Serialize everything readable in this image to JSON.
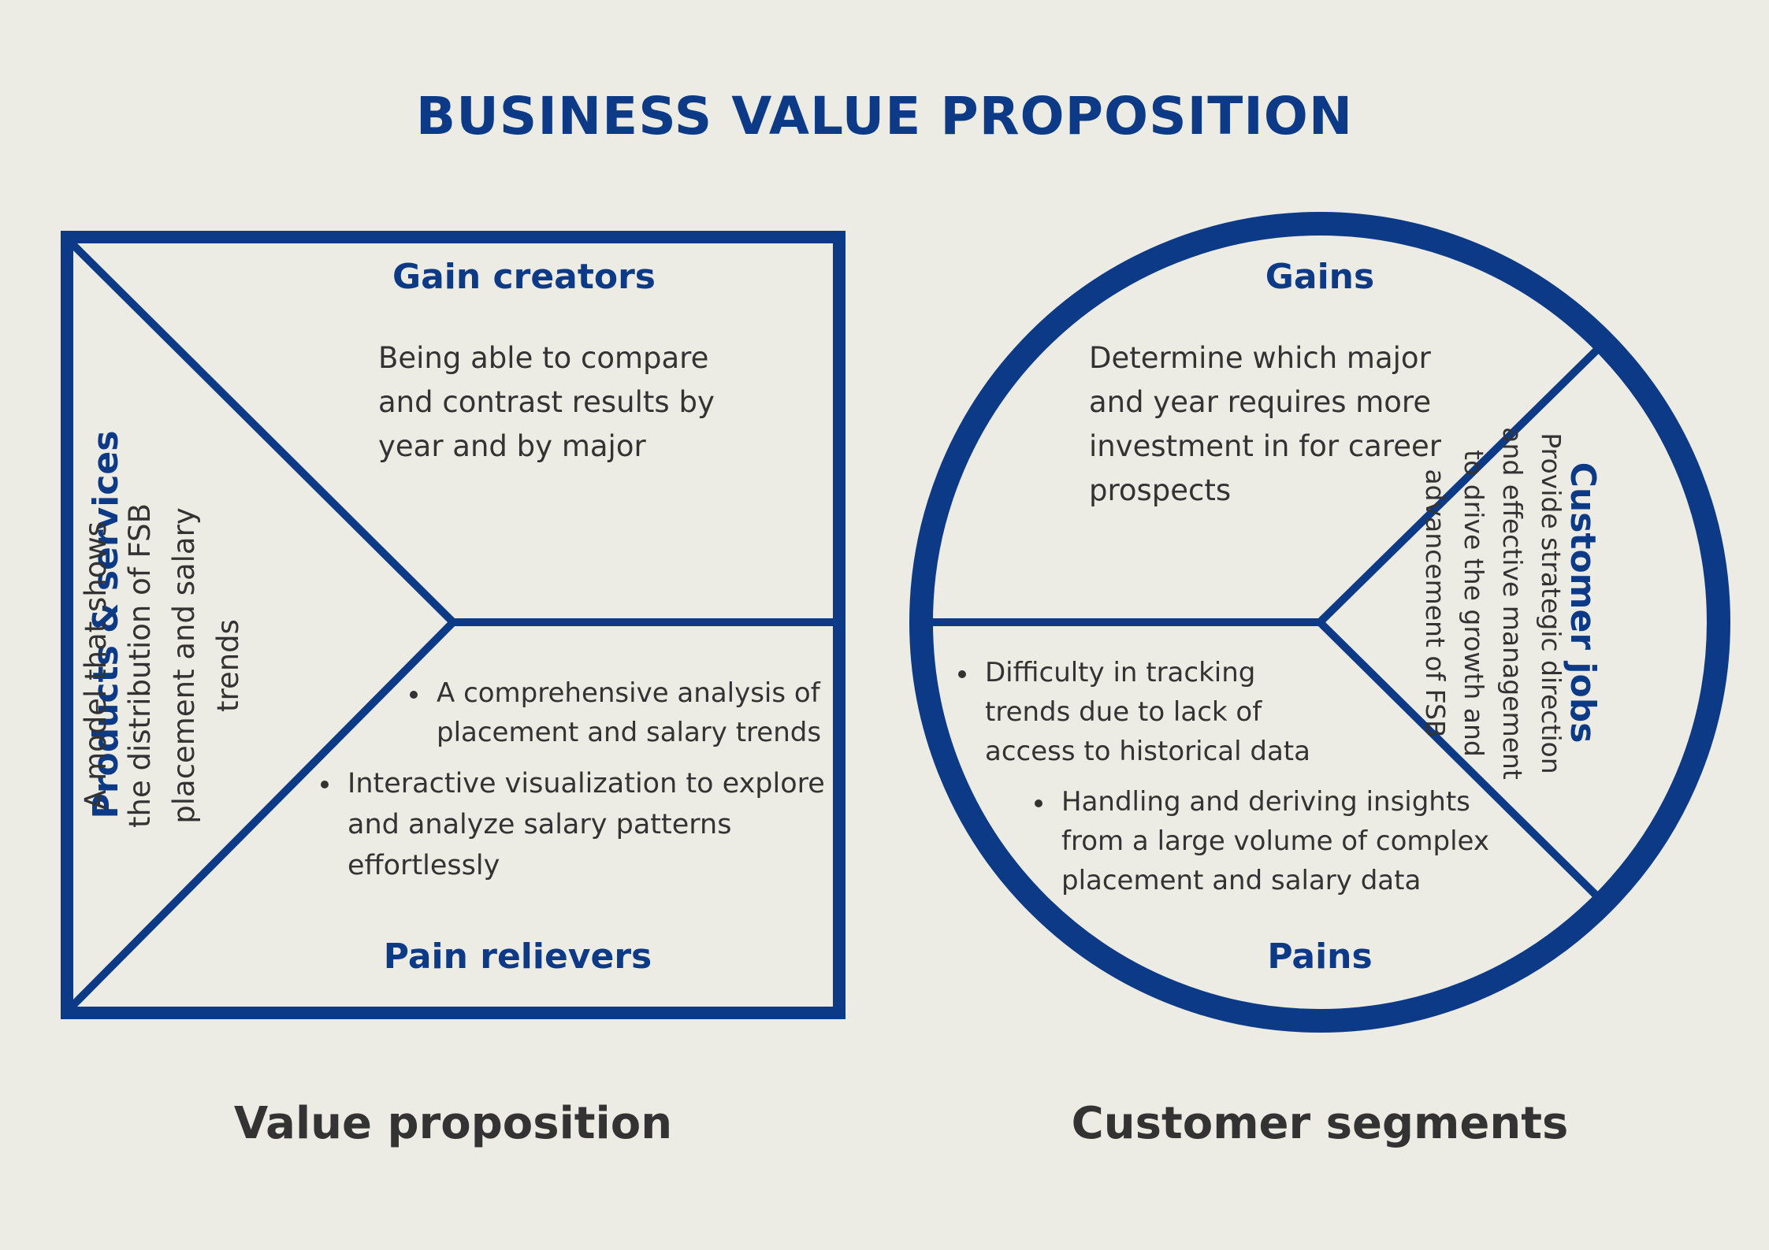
{
  "title": "BUSINESS VALUE PROPOSITION",
  "value_proposition": {
    "caption": "Value proposition",
    "gain_creators": {
      "heading": "Gain creators",
      "text": "Being able to compare and contrast results by year and by major"
    },
    "products_services": {
      "heading": "Products & services",
      "text": "A model that shows the distribution of FSB placement and salary trends"
    },
    "pain_relievers": {
      "heading": "Pain relievers",
      "items": [
        "A comprehensive analysis of placement and salary trends",
        "Interactive visualization to explore and analyze salary patterns effortlessly"
      ]
    }
  },
  "customer_segments": {
    "caption": "Customer segments",
    "gains": {
      "heading": "Gains",
      "text": "Determine which major and year requires more investment in for career prospects"
    },
    "customer_jobs": {
      "heading": "Customer jobs",
      "text": "Provide strategic direction and effective management to drive the growth and advancement of FSB"
    },
    "pains": {
      "heading": "Pains",
      "items": [
        "Difficulty in tracking trends due to lack of access to historical data",
        "Handling and deriving insights from a large volume of complex placement and salary data"
      ]
    }
  },
  "colors": {
    "accent": "#0c3a86",
    "text": "#333333",
    "background": "#ecebe4"
  }
}
